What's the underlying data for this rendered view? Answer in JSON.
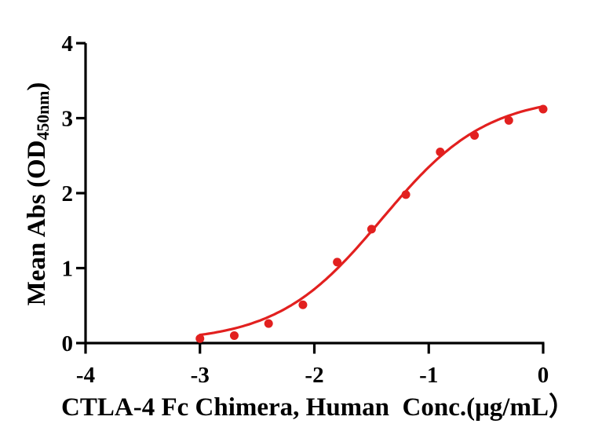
{
  "chart_data": {
    "type": "scatter",
    "title": "",
    "xlabel": "CTLA-4 Fc Chimera, Human  Conc.(μg/mL）",
    "ylabel": "Mean Abs (OD450nm)",
    "ylabel_parts": {
      "prefix": "Mean Abs (OD",
      "subscript": "450nm",
      "suffix": ")"
    },
    "x": [
      -3,
      -2.7,
      -2.4,
      -2.1,
      -1.8,
      -1.5,
      -1.2,
      -0.9,
      -0.6,
      -0.3,
      0
    ],
    "y": [
      0.06,
      0.1,
      0.26,
      0.51,
      1.08,
      1.52,
      1.98,
      2.55,
      2.77,
      2.97,
      3.12
    ],
    "xlim": [
      -4,
      0
    ],
    "ylim": [
      0,
      4
    ],
    "xticks": [
      "-4",
      "-3",
      "-2",
      "-1",
      "0"
    ],
    "xtick_values": [
      -4,
      -3,
      -2,
      -1,
      0
    ],
    "yticks": [
      "0",
      "1",
      "2",
      "3",
      "4"
    ],
    "ytick_values": [
      0,
      1,
      2,
      3,
      4
    ],
    "grid": false,
    "legend": "none",
    "point_color": "#e2201f",
    "curve_color": "#e2201f",
    "axis_color": "#000000",
    "fit_curve": {
      "model": "four-parameter-logistic",
      "bottom": 0.01,
      "top": 3.3,
      "logEC50": -1.41,
      "hillslope": 0.95,
      "x_start": -3,
      "x_end": 0
    }
  }
}
